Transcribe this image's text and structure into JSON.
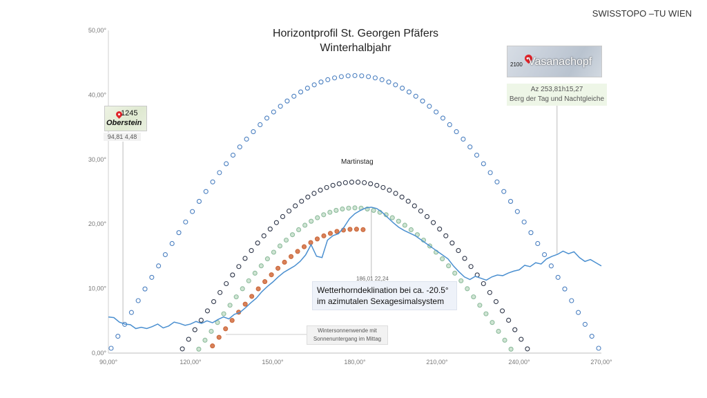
{
  "header": {
    "source": "SWISSTOPO –TU WIEN"
  },
  "chart_data": {
    "type": "line",
    "title_line1": "Horizontprofil St. Georgen Pfäfers",
    "title_line2": "Winterhalbjahr",
    "xlim": [
      90,
      270
    ],
    "ylim": [
      0,
      50
    ],
    "x_ticks": [
      "90,00°",
      "120,00°",
      "150,00°",
      "180,00°",
      "210,00°",
      "240,00°",
      "270,00°"
    ],
    "y_ticks": [
      "0,00°",
      "10,00°",
      "20,00°",
      "30,00°",
      "40,00°",
      "50,00°"
    ],
    "grid": false,
    "colors": {
      "horizon": "#4a8fd0",
      "equinox": "#4a7fc0",
      "martinstag": "#2c3447",
      "green": "#8dbb9c",
      "winter": "#c9683a"
    },
    "series": [
      {
        "kind": "horizon",
        "x": [
          90,
          92,
          94,
          96,
          98,
          100,
          102,
          104,
          106,
          108,
          110,
          112,
          114,
          116,
          118,
          120,
          122,
          124,
          126,
          128,
          130,
          132,
          134,
          136,
          138,
          140,
          142,
          144,
          146,
          148,
          150,
          152,
          154,
          156,
          158,
          160,
          162,
          164,
          166,
          168,
          170,
          172,
          174,
          176,
          178,
          180,
          182,
          184,
          186,
          188,
          190,
          192,
          194,
          196,
          198,
          200,
          202,
          204,
          206,
          208,
          210,
          212,
          214,
          216,
          218,
          220,
          222,
          224,
          226,
          228,
          230,
          232,
          234,
          236,
          238,
          240,
          242,
          244,
          246,
          248,
          250,
          252,
          254,
          256,
          258,
          260,
          262,
          264,
          266,
          268,
          270
        ],
        "y": [
          5.6,
          5.5,
          4.8,
          4.5,
          4.4,
          3.8,
          4.0,
          3.8,
          4.1,
          4.5,
          3.9,
          4.2,
          4.8,
          4.6,
          4.3,
          4.5,
          4.9,
          4.6,
          5.0,
          4.7,
          5.2,
          5.6,
          5.3,
          6.0,
          6.3,
          7.0,
          7.8,
          8.5,
          9.5,
          10.3,
          11.0,
          11.8,
          12.5,
          13.0,
          13.5,
          14.2,
          15.2,
          16.8,
          15.0,
          14.8,
          17.5,
          18.2,
          18.5,
          19.5,
          20.8,
          21.6,
          22.1,
          22.5,
          22.6,
          22.4,
          21.8,
          21.0,
          20.2,
          19.5,
          19.0,
          18.6,
          18.2,
          17.6,
          17.0,
          16.4,
          15.8,
          15.2,
          14.6,
          13.5,
          12.6,
          11.8,
          11.4,
          11.9,
          11.6,
          11.3,
          11.8,
          12.1,
          12.0,
          12.4,
          12.7,
          12.9,
          13.6,
          13.4,
          14.0,
          13.8,
          14.6,
          15.0,
          15.3,
          15.8,
          15.4,
          15.7,
          14.8,
          14.2,
          14.5,
          14.0,
          13.5
        ]
      },
      {
        "kind": "dots",
        "name": "Berg der Tag und Nachtgleiche",
        "color_key": "equinox",
        "fill": "none",
        "center_az": 180,
        "half_width": 90,
        "peak": 43,
        "count": 73
      },
      {
        "kind": "dots",
        "name": "Martinstag",
        "color_key": "martinstag",
        "fill": "none",
        "center_az": 180,
        "half_width": 64,
        "peak": 26.5,
        "count": 56
      },
      {
        "kind": "dots",
        "color_key": "green",
        "fill": "#cfe4d3",
        "center_az": 180,
        "half_width": 58,
        "peak": 22.5,
        "count": 51
      },
      {
        "kind": "dots",
        "name": "Wintersonnenwende",
        "color_key": "winter",
        "fill": "#d9815a",
        "center_az": 180,
        "half_width": 54,
        "peak": 19.2,
        "count": 24,
        "x_max": 183
      }
    ],
    "annotations": {
      "oberstein": {
        "map_number": "1245",
        "map_name": "Oberstein",
        "label": "94,81 4,48",
        "x": 94.81,
        "y": 4.48
      },
      "vasanachopf": {
        "map_number": "2100",
        "map_name": "Vasanachopf",
        "label_line1": "Az 253,81h15,27",
        "label_line2": "Berg der Tag und Nachtgleiche",
        "x": 253.81,
        "y": 15.27
      },
      "martinstag_label": "Martinstag",
      "peak_label": "186,01 22,24",
      "peak_x": 186.01,
      "peak_y": 22.24,
      "winter_label_line1": "Wintersonnenwende mit",
      "winter_label_line2": "Sonnenuntergang im Mittag",
      "declination_line1": "Wetterhorndeklination bei ca. -20.5°",
      "declination_line2": "im azimutalen Sexagesimalsystem"
    }
  }
}
